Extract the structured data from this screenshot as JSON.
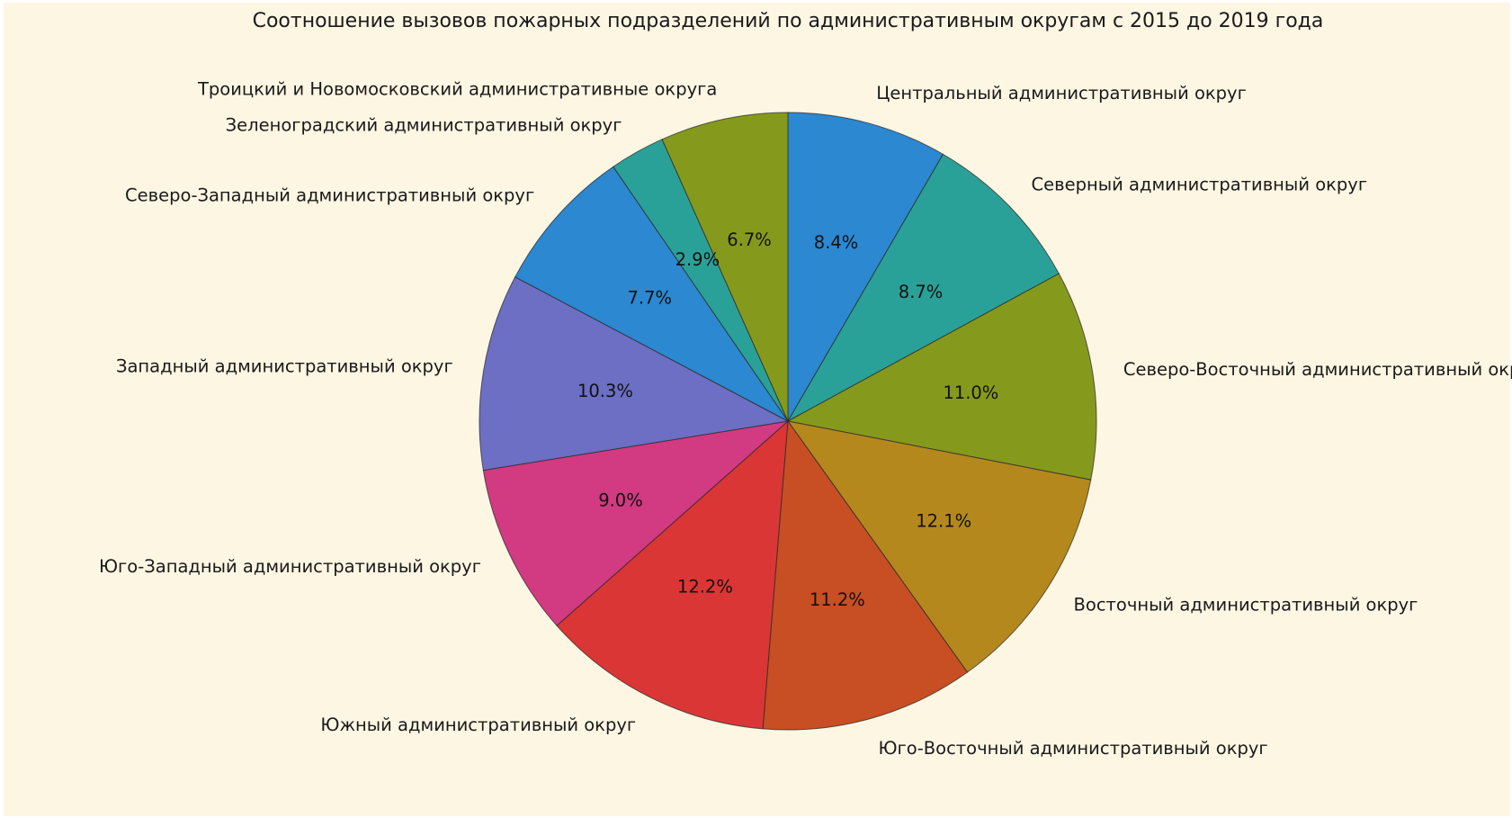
{
  "chart_data": {
    "type": "pie",
    "title": "Соотношение вызовов пожарных подразделений по административным округам с 2015 до 2019 года",
    "start_angle_deg": 90,
    "direction": "clockwise",
    "slices": [
      {
        "label": "Центральный административный округ",
        "value": 8.4,
        "pct_label": "8.4%",
        "color": "#2b88d1"
      },
      {
        "label": "Северный административный округ",
        "value": 8.7,
        "pct_label": "8.7%",
        "color": "#2aa198"
      },
      {
        "label": "Северо-Восточный административный округ",
        "value": 11.0,
        "pct_label": "11.0%",
        "color": "#859a1c"
      },
      {
        "label": "Восточный административный округ",
        "value": 12.1,
        "pct_label": "12.1%",
        "color": "#b4881d"
      },
      {
        "label": "Юго-Восточный административный округ",
        "value": 11.2,
        "pct_label": "11.2%",
        "color": "#c84e23"
      },
      {
        "label": "Южный административный округ",
        "value": 12.2,
        "pct_label": "12.2%",
        "color": "#da3635"
      },
      {
        "label": "Юго-Западный административный округ",
        "value": 9.0,
        "pct_label": "9.0%",
        "color": "#d23a82"
      },
      {
        "label": "Западный административный округ",
        "value": 10.3,
        "pct_label": "10.3%",
        "color": "#6c6fc3"
      },
      {
        "label": "Северо-Западный административный округ",
        "value": 7.7,
        "pct_label": "7.7%",
        "color": "#2b88d1"
      },
      {
        "label": "Зеленоградский административный округ",
        "value": 2.9,
        "pct_label": "2.9%",
        "color": "#2aa198"
      },
      {
        "label": "Троицкий и Новомосковский административные округа",
        "value": 6.7,
        "pct_label": "6.7%",
        "color": "#859a1c"
      }
    ],
    "background": "#fdf6e3"
  }
}
